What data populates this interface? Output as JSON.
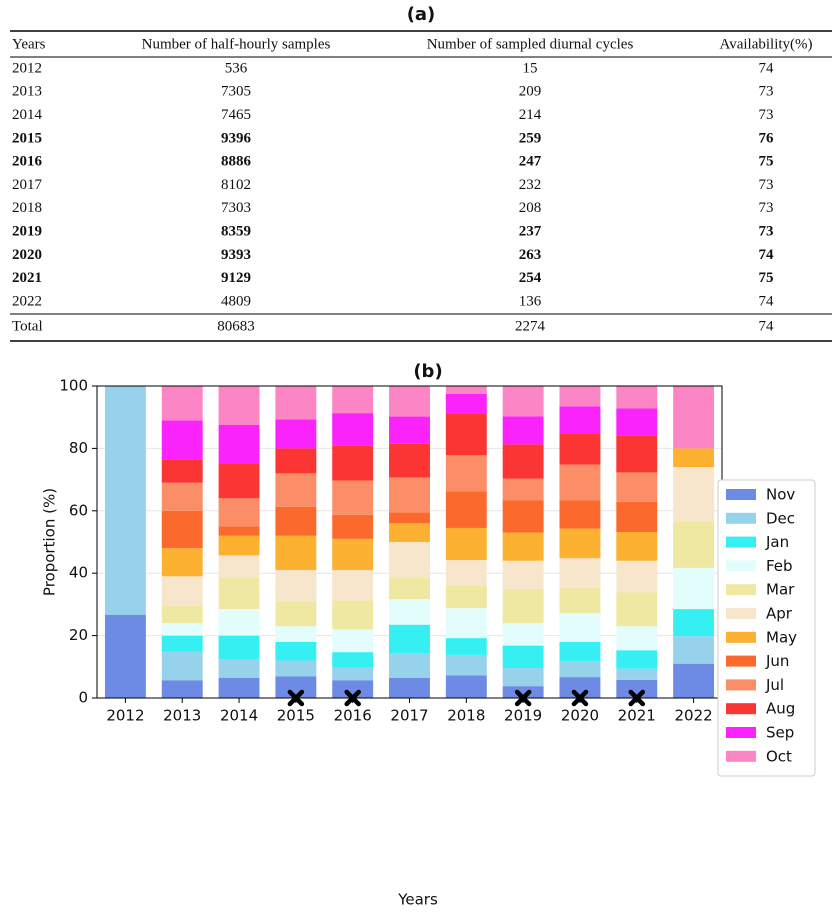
{
  "table": {
    "title": "(a)",
    "header": [
      "Years",
      "Number of half-hourly samples",
      "Number of sampled diurnal cycles",
      "Availability(%)"
    ],
    "rows": [
      [
        "2012",
        536,
        15,
        74
      ],
      [
        "2013",
        7305,
        209,
        73
      ],
      [
        "2014",
        7465,
        214,
        73
      ],
      [
        "2015",
        9396,
        259,
        76
      ],
      [
        "2016",
        8886,
        247,
        75
      ],
      [
        "2017",
        8102,
        232,
        73
      ],
      [
        "2018",
        7303,
        208,
        73
      ],
      [
        "2019",
        8359,
        237,
        73
      ],
      [
        "2020",
        9393,
        263,
        74
      ],
      [
        "2021",
        9129,
        254,
        75
      ],
      [
        "2022",
        4809,
        136,
        74
      ]
    ],
    "bold": [
      false,
      false,
      false,
      true,
      true,
      false,
      false,
      true,
      true,
      true,
      false
    ],
    "total": [
      "Total",
      80683,
      2274,
      74
    ]
  },
  "chart_data": {
    "type": "bar",
    "stacked": true,
    "title": "(b)",
    "x_label": "Years",
    "y_label": "Proportion (%)",
    "categories": [
      "2012",
      "2013",
      "2014",
      "2015",
      "2016",
      "2017",
      "2018",
      "2019",
      "2020",
      "2021",
      "2022"
    ],
    "ylim": [
      0,
      100
    ],
    "yticks": [
      0,
      20,
      40,
      60,
      80,
      100
    ],
    "grid": true,
    "legend": "right",
    "series": [
      {
        "name": "Nov",
        "color": "#6d8ae4",
        "values": [
          26.7,
          5.7,
          6.5,
          6.9,
          5.7,
          6.5,
          7.2,
          3.8,
          6.7,
          5.8,
          11
        ]
      },
      {
        "name": "Dec",
        "color": "#96d2ea",
        "values": [
          73.3,
          9.1,
          6,
          5.1,
          4,
          7.8,
          6.6,
          5.8,
          5.1,
          3.6,
          8.8
        ]
      },
      {
        "name": "Jan",
        "color": "#36eff3",
        "values": [
          0,
          5.2,
          7.5,
          6,
          5,
          9.2,
          5.4,
          7.2,
          6.2,
          5.9,
          8.7
        ]
      },
      {
        "name": "Feb",
        "color": "#e3fdfd",
        "values": [
          0,
          4,
          8.5,
          5,
          7.3,
          8.2,
          9.6,
          7.2,
          9.2,
          7.7,
          13.2
        ]
      },
      {
        "name": "Mar",
        "color": "#efe8a3",
        "values": [
          0,
          5.5,
          10,
          8,
          9.3,
          6.8,
          7.2,
          11,
          8.1,
          10.8,
          14.8
        ]
      },
      {
        "name": "Apr",
        "color": "#f7e5cc",
        "values": [
          0,
          9.5,
          7.2,
          10,
          9.7,
          11.5,
          8.2,
          9,
          9.5,
          10.2,
          17.5
        ]
      },
      {
        "name": "May",
        "color": "#fcb131",
        "values": [
          0,
          9,
          6.3,
          11,
          10,
          6,
          10.3,
          9,
          9.5,
          9.2,
          6
        ]
      },
      {
        "name": "Jun",
        "color": "#fb6a2c",
        "values": [
          0,
          12,
          3,
          9.3,
          7.7,
          3.5,
          11.7,
          10.3,
          9,
          9.7,
          0
        ]
      },
      {
        "name": "Jul",
        "color": "#fb8e67",
        "values": [
          0,
          9,
          9,
          10.7,
          11,
          11.2,
          11.6,
          7,
          11.5,
          9.4,
          0
        ]
      },
      {
        "name": "Aug",
        "color": "#fb3434",
        "values": [
          0,
          7.5,
          11,
          8,
          11.3,
          10.8,
          13.5,
          11,
          10,
          11.9,
          0
        ]
      },
      {
        "name": "Sep",
        "color": "#fb23fb",
        "values": [
          0,
          12.5,
          12.5,
          9.3,
          10.3,
          8.7,
          6.2,
          9,
          8.7,
          8.6,
          0
        ]
      },
      {
        "name": "Oct",
        "color": "#fb85c5",
        "values": [
          0,
          11,
          12.5,
          10.7,
          8.7,
          9.8,
          2.5,
          9.7,
          6.5,
          7.2,
          20
        ]
      }
    ],
    "markers": {
      "marker": "x",
      "color": "#000000",
      "values": [
        null,
        null,
        null,
        0,
        0,
        null,
        null,
        0,
        0,
        0,
        null
      ]
    }
  }
}
